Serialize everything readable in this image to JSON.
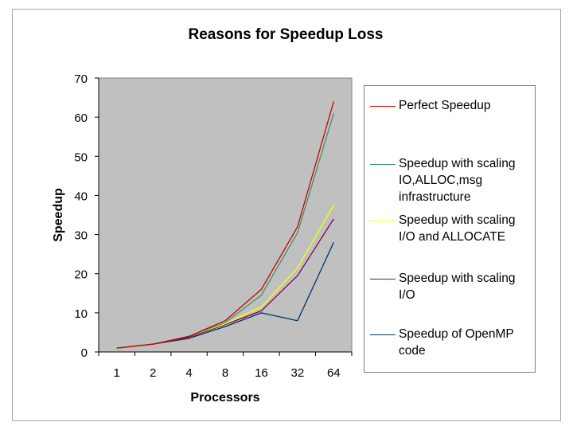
{
  "chart_data": {
    "type": "line",
    "title": "Reasons for Speedup Loss",
    "xlabel": "Processors",
    "ylabel": "Speedup",
    "categories": [
      "1",
      "2",
      "4",
      "8",
      "16",
      "32",
      "64"
    ],
    "ylim": [
      0,
      70
    ],
    "yticks": [
      0,
      10,
      20,
      30,
      40,
      50,
      60,
      70
    ],
    "grid": false,
    "legend_position": "right",
    "series": [
      {
        "name": "Perfect Speedup",
        "color": "#cc0000",
        "values": [
          1,
          2,
          4,
          8,
          16,
          32,
          64
        ]
      },
      {
        "name": "Speedup with scaling IO,ALLOC,msg infrastructure",
        "color": "#339966",
        "values": [
          1,
          2,
          4,
          7.5,
          14.5,
          30.5,
          61
        ]
      },
      {
        "name": "Speedup with scaling I/O and ALLOCATE",
        "color": "#ffff00",
        "values": [
          1,
          2,
          4,
          7.2,
          11.5,
          21.5,
          37.5
        ]
      },
      {
        "name": "Speedup with scaling I/O",
        "color": "#800060",
        "values": [
          1,
          2,
          3.8,
          7,
          10.5,
          19.5,
          34
        ]
      },
      {
        "name": "Speedup of OpenMP code",
        "color": "#003366",
        "values": [
          1,
          2,
          3.5,
          6.5,
          10,
          8,
          28
        ]
      }
    ]
  }
}
